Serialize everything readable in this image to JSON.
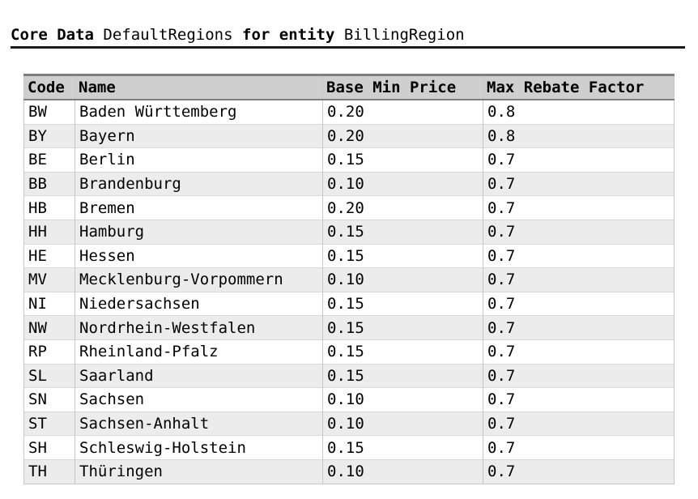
{
  "heading": {
    "kw1": "Core Data",
    "name": "DefaultRegions",
    "kw2": "for entity",
    "entity": "BillingRegion"
  },
  "table": {
    "columns": [
      "Code",
      "Name",
      "Base Min Price",
      "Max Rebate Factor"
    ],
    "rows": [
      [
        "BW",
        "Baden Württemberg",
        "0.20",
        "0.8"
      ],
      [
        "BY",
        "Bayern",
        "0.20",
        "0.8"
      ],
      [
        "BE",
        "Berlin",
        "0.15",
        "0.7"
      ],
      [
        "BB",
        "Brandenburg",
        "0.10",
        "0.7"
      ],
      [
        "HB",
        "Bremen",
        "0.20",
        "0.7"
      ],
      [
        "HH",
        "Hamburg",
        "0.15",
        "0.7"
      ],
      [
        "HE",
        "Hessen",
        "0.15",
        "0.7"
      ],
      [
        "MV",
        "Mecklenburg-Vorpommern",
        "0.10",
        "0.7"
      ],
      [
        "NI",
        "Niedersachsen",
        "0.15",
        "0.7"
      ],
      [
        "NW",
        "Nordrhein-Westfalen",
        "0.15",
        "0.7"
      ],
      [
        "RP",
        "Rheinland-Pfalz",
        "0.15",
        "0.7"
      ],
      [
        "SL",
        "Saarland",
        "0.15",
        "0.7"
      ],
      [
        "SN",
        "Sachsen",
        "0.10",
        "0.7"
      ],
      [
        "ST",
        "Sachsen-Anhalt",
        "0.10",
        "0.7"
      ],
      [
        "SH",
        "Schleswig-Holstein",
        "0.15",
        "0.7"
      ],
      [
        "TH",
        "Thüringen",
        "0.10",
        "0.7"
      ]
    ]
  }
}
